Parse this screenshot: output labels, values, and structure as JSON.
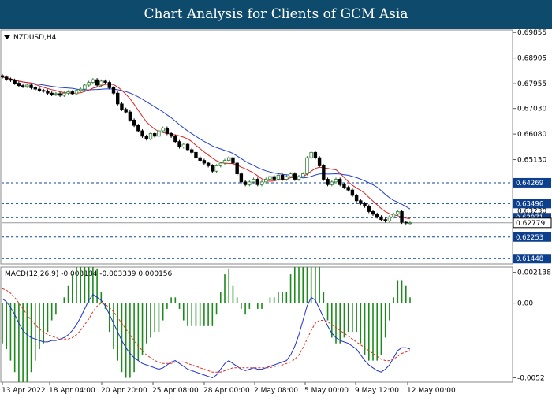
{
  "header": {
    "title": "Chart Analysis for Clients of GCM Asia"
  },
  "chart_data": [
    {
      "type": "candlestick",
      "symbol_label": "NZDUSD,H4",
      "ylim": [
        0.6125,
        0.6995
      ],
      "y_ticks": [
        0.69855,
        0.68905,
        0.67955,
        0.6703,
        0.6608,
        0.6513
      ],
      "y_tick_labels": [
        "0.69855",
        "0.68905",
        "0.67955",
        "0.67030",
        "0.66080",
        "0.65130"
      ],
      "levels": [
        {
          "value": 0.64269,
          "label": "0.64269",
          "color": "#0d47a1"
        },
        {
          "value": 0.63496,
          "label": "0.63496",
          "color": "#0d47a1"
        },
        {
          "value": 0.62971,
          "label": "0.62971",
          "color": "#0d47a1"
        },
        {
          "value": 0.62253,
          "label": "0.62253",
          "color": "#0d47a1"
        },
        {
          "value": 0.61448,
          "label": "0.61448",
          "color": "#0d47a1"
        }
      ],
      "current_price": {
        "value": 0.62779,
        "label": "0.62779"
      },
      "hidden_level_label": "0.63230",
      "x_tick_labels": [
        "13 Apr 2022",
        "18 Apr 04:00",
        "20 Apr 20:00",
        "25 Apr 08:00",
        "28 Apr 00:00",
        "2 May 08:00",
        "5 May 00:00",
        "9 May 12:00",
        "12 May 00:00"
      ],
      "close_series": [
        0.682,
        0.6812,
        0.6808,
        0.6797,
        0.6788,
        0.6785,
        0.679,
        0.678,
        0.6775,
        0.677,
        0.6768,
        0.676,
        0.6755,
        0.6758,
        0.6752,
        0.676,
        0.6765,
        0.6758,
        0.677,
        0.6775,
        0.679,
        0.68,
        0.681,
        0.679,
        0.6805,
        0.68,
        0.678,
        0.676,
        0.672,
        0.67,
        0.669,
        0.666,
        0.664,
        0.662,
        0.66,
        0.659,
        0.661,
        0.66,
        0.662,
        0.663,
        0.661,
        0.66,
        0.658,
        0.656,
        0.657,
        0.655,
        0.654,
        0.652,
        0.651,
        0.65,
        0.649,
        0.647,
        0.649,
        0.65,
        0.651,
        0.652,
        0.65,
        0.646,
        0.643,
        0.642,
        0.643,
        0.644,
        0.642,
        0.643,
        0.644,
        0.645,
        0.644,
        0.6455,
        0.644,
        0.645,
        0.646,
        0.644,
        0.645,
        0.646,
        0.652,
        0.654,
        0.652,
        0.649,
        0.644,
        0.642,
        0.643,
        0.644,
        0.642,
        0.641,
        0.64,
        0.638,
        0.636,
        0.635,
        0.634,
        0.632,
        0.631,
        0.63,
        0.629,
        0.6285,
        0.63,
        0.631,
        0.632,
        0.628,
        0.6278,
        0.6278
      ],
      "ma_fast_color": "#e02020",
      "ma_slow_color": "#1f3fd1",
      "bull_color": "#2e7d32",
      "bear_color": "#000000"
    },
    {
      "type": "macd",
      "label": "MACD(12,26,9) -0.003184 -0.003339 0.000156",
      "ylim": [
        -0.0055,
        0.0025
      ],
      "y_ticks": [
        0.002138,
        0.0,
        -0.0052
      ],
      "y_tick_labels": [
        "0.002138",
        "0.00",
        "-0.0052"
      ],
      "histogram_color": "#1b8a1b",
      "macd_color": "#1f2fd1",
      "signal_color": "#e03020",
      "macd": [
        0.0003,
        0.0001,
        -0.0003,
        -0.0008,
        -0.0014,
        -0.0019,
        -0.0022,
        -0.0024,
        -0.0025,
        -0.0026,
        -0.0027,
        -0.0027,
        -0.0026,
        -0.0026,
        -0.0025,
        -0.0024,
        -0.0022,
        -0.0019,
        -0.0015,
        -0.001,
        -0.0004,
        0.0002,
        0.0006,
        0.0004,
        0.0002,
        -0.0002,
        -0.0008,
        -0.0014,
        -0.002,
        -0.0026,
        -0.0031,
        -0.0035,
        -0.0038,
        -0.004,
        -0.0042,
        -0.0043,
        -0.0044,
        -0.0045,
        -0.0046,
        -0.0045,
        -0.0043,
        -0.0041,
        -0.004,
        -0.0042,
        -0.0044,
        -0.0046,
        -0.0047,
        -0.0048,
        -0.0049,
        -0.005,
        -0.0051,
        -0.0052,
        -0.005,
        -0.0046,
        -0.0042,
        -0.004,
        -0.0042,
        -0.0044,
        -0.0046,
        -0.0047,
        -0.0046,
        -0.0045,
        -0.0046,
        -0.0046,
        -0.0045,
        -0.0044,
        -0.0043,
        -0.0042,
        -0.0041,
        -0.004,
        -0.0036,
        -0.003,
        -0.0022,
        -0.0012,
        -0.0002,
        0.0004,
        0.0002,
        -0.0004,
        -0.001,
        -0.0016,
        -0.0021,
        -0.0024,
        -0.0026,
        -0.0027,
        -0.0028,
        -0.003,
        -0.0032,
        -0.0036,
        -0.004,
        -0.0043,
        -0.0045,
        -0.0047,
        -0.0048,
        -0.0046,
        -0.0043,
        -0.0038,
        -0.0033,
        -0.0031,
        -0.0031,
        -0.0032
      ],
      "signal": [
        0.001,
        0.0009,
        0.0007,
        0.0004,
        0.0,
        -0.0004,
        -0.0008,
        -0.0012,
        -0.0015,
        -0.0018,
        -0.002,
        -0.0022,
        -0.0023,
        -0.0024,
        -0.0025,
        -0.0025,
        -0.0025,
        -0.0024,
        -0.0022,
        -0.0019,
        -0.0015,
        -0.0011,
        -0.0006,
        -0.0002,
        0.0,
        -0.0001,
        -0.0003,
        -0.0006,
        -0.001,
        -0.0014,
        -0.0018,
        -0.0022,
        -0.0026,
        -0.003,
        -0.0033,
        -0.0036,
        -0.0038,
        -0.004,
        -0.0041,
        -0.0042,
        -0.0042,
        -0.0042,
        -0.0041,
        -0.0041,
        -0.0041,
        -0.0042,
        -0.0043,
        -0.0044,
        -0.0045,
        -0.0046,
        -0.0047,
        -0.0048,
        -0.0048,
        -0.0048,
        -0.0047,
        -0.0046,
        -0.0045,
        -0.0045,
        -0.0045,
        -0.0045,
        -0.0045,
        -0.0045,
        -0.0045,
        -0.0045,
        -0.0045,
        -0.0045,
        -0.0044,
        -0.0044,
        -0.0043,
        -0.0042,
        -0.0041,
        -0.0039,
        -0.0036,
        -0.0031,
        -0.0025,
        -0.0019,
        -0.0014,
        -0.0012,
        -0.0012,
        -0.0013,
        -0.0015,
        -0.0017,
        -0.0019,
        -0.0021,
        -0.0023,
        -0.0025,
        -0.0027,
        -0.0029,
        -0.0031,
        -0.0033,
        -0.0035,
        -0.0037,
        -0.0039,
        -0.004,
        -0.004,
        -0.0039,
        -0.0037,
        -0.0035,
        -0.0034,
        -0.0033
      ]
    }
  ]
}
